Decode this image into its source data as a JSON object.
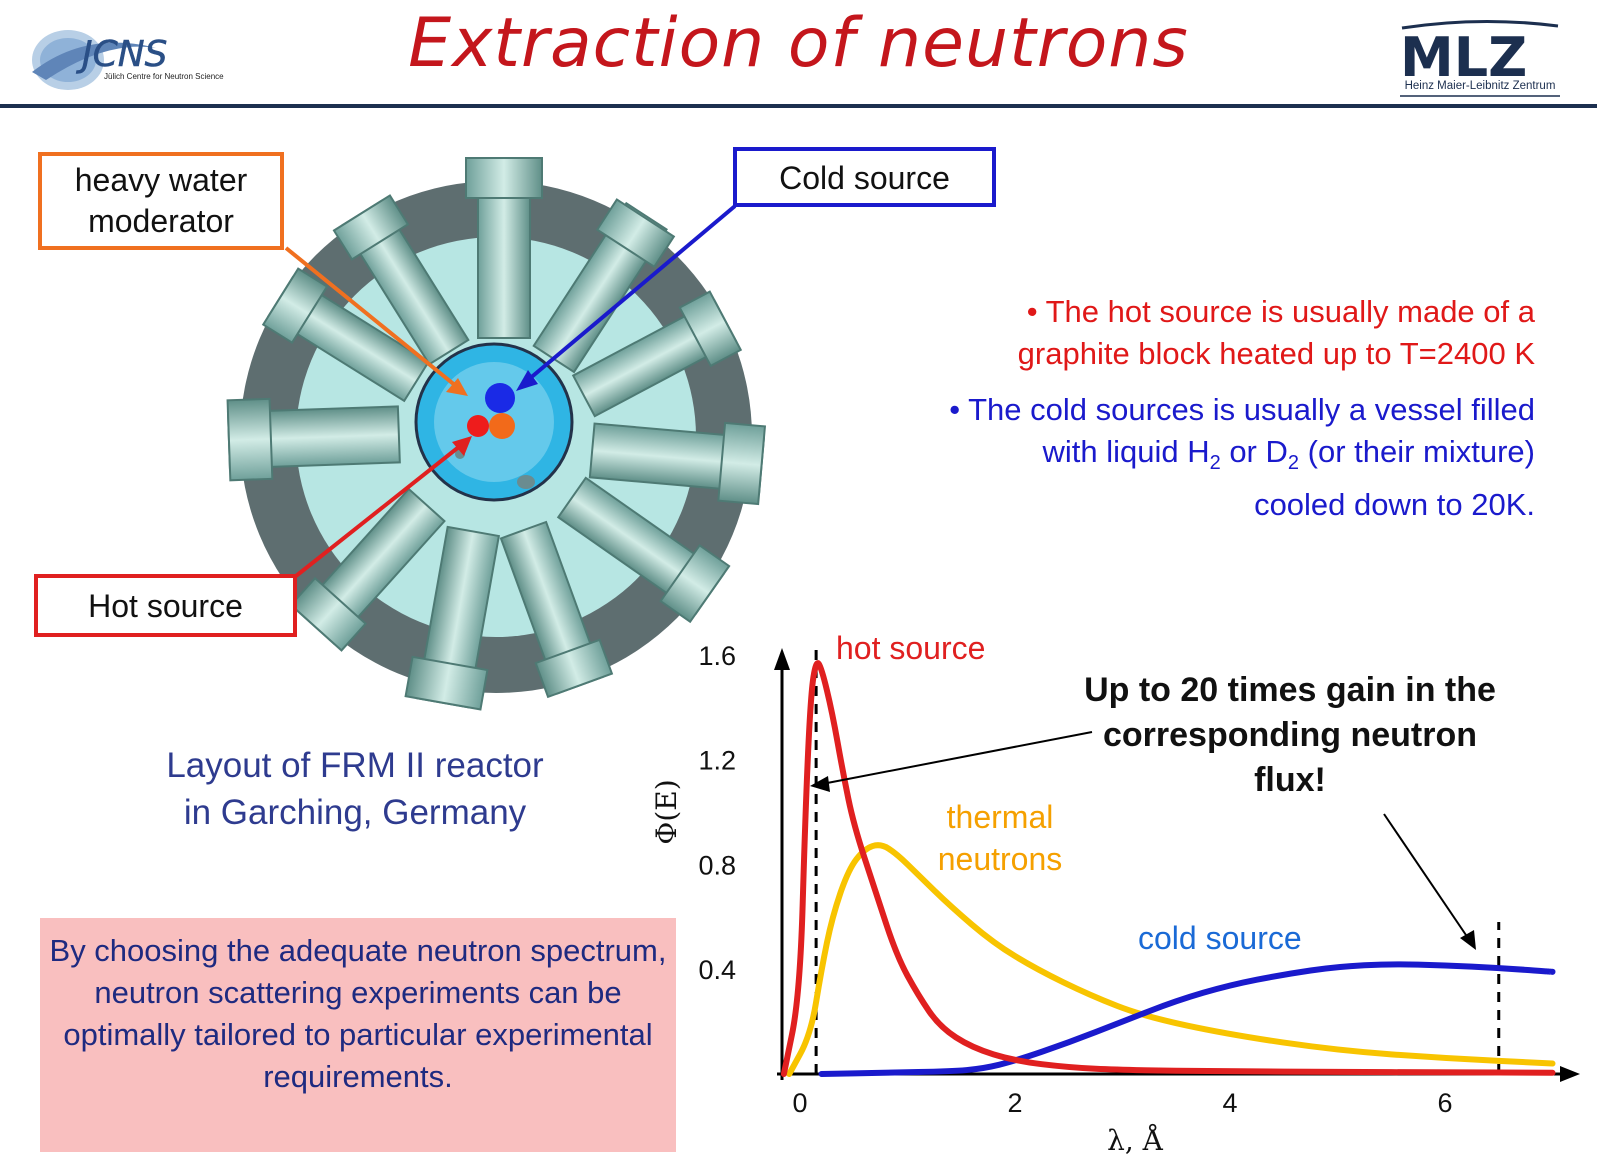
{
  "header": {
    "title": "Extraction of neutrons",
    "left_logo": {
      "text": "JCNS",
      "subtitle": "Jülich Centre for Neutron Science"
    },
    "right_logo": {
      "text": "MLZ",
      "subtitle": "Heinz Maier-Leibnitz Zentrum"
    }
  },
  "reactor": {
    "callouts": {
      "heavy_water": "heavy water moderator",
      "cold_source": "Cold source",
      "hot_source": "Hot source"
    },
    "caption_line1": "Layout of FRM II reactor",
    "caption_line2": "in Garching, Germany"
  },
  "bullets": {
    "hot": {
      "line1": "The hot source is usually made of a",
      "line2": "graphite block heated up to T=2400 K"
    },
    "cold": {
      "line1": "The cold sources is usually a vessel filled",
      "line2a": "with liquid H",
      "sub1": "2",
      "line2b": " or D",
      "sub2": "2",
      "line2c": " (or their mixture)",
      "line3": "cooled down to 20K."
    }
  },
  "note": "By choosing the adequate neutron spectrum, neutron scattering experiments can be optimally tailored to particular experimental requirements.",
  "gain_note": "Up to 20 times gain in the corresponding neutron flux!",
  "colors": {
    "hot": "#e02020",
    "thermal": "#f8c400",
    "cold": "#1a1acc",
    "title": "#c4161c"
  },
  "chart_data": {
    "type": "line",
    "xlabel": "λ, Å",
    "ylabel": "Φ(E)",
    "xlim": [
      -0.2,
      7.0
    ],
    "ylim": [
      0,
      1.65
    ],
    "xticks": [
      "0",
      "2",
      "4",
      "6"
    ],
    "xtick_values": [
      0,
      2,
      4,
      6
    ],
    "yticks": [
      "0.4",
      "0.8",
      "1.2",
      "1.6"
    ],
    "ytick_values": [
      0.4,
      0.8,
      1.2,
      1.6
    ],
    "grid": false,
    "series": [
      {
        "name": "hot source",
        "color": "#e02020",
        "x": [
          -0.15,
          0.0,
          0.05,
          0.1,
          0.15,
          0.2,
          0.3,
          0.4,
          0.5,
          0.7,
          0.9,
          1.1,
          1.3,
          1.6,
          2.0,
          2.5,
          3.0,
          4.0,
          5.0,
          6.0,
          7.0
        ],
        "y": [
          0.0,
          0.3,
          1.0,
          1.45,
          1.58,
          1.55,
          1.38,
          1.15,
          0.95,
          0.7,
          0.45,
          0.3,
          0.18,
          0.1,
          0.05,
          0.025,
          0.015,
          0.01,
          0.008,
          0.006,
          0.005
        ]
      },
      {
        "name": "thermal neutrons",
        "color": "#f8c400",
        "x": [
          -0.1,
          0.1,
          0.2,
          0.3,
          0.45,
          0.6,
          0.75,
          0.9,
          1.1,
          1.4,
          1.8,
          2.2,
          2.7,
          3.2,
          4.0,
          5.0,
          6.0,
          7.0
        ],
        "y": [
          0.0,
          0.15,
          0.4,
          0.6,
          0.78,
          0.86,
          0.88,
          0.84,
          0.76,
          0.64,
          0.5,
          0.4,
          0.3,
          0.22,
          0.15,
          0.09,
          0.06,
          0.04
        ]
      },
      {
        "name": "cold source",
        "color": "#1a1acc",
        "x": [
          0.2,
          0.8,
          1.4,
          1.7,
          2.0,
          2.5,
          3.0,
          3.5,
          4.0,
          4.5,
          5.0,
          5.5,
          6.0,
          6.5,
          7.0
        ],
        "y": [
          0.0,
          0.005,
          0.01,
          0.02,
          0.05,
          0.12,
          0.2,
          0.28,
          0.34,
          0.38,
          0.41,
          0.42,
          0.415,
          0.405,
          0.39
        ]
      }
    ],
    "dashed_markers_x": [
      0.15,
      6.5
    ]
  }
}
